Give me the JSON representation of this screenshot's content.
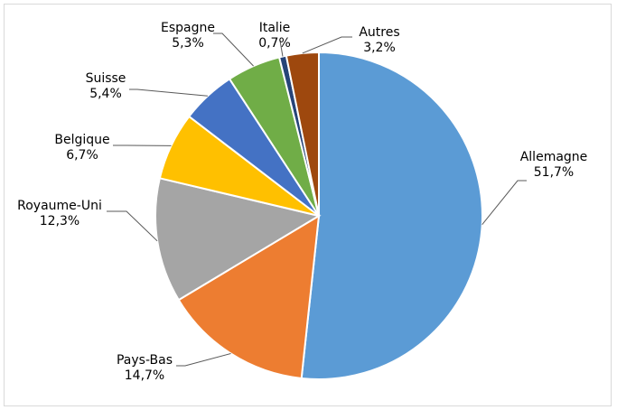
{
  "chart_data": {
    "type": "pie",
    "title": "",
    "slices": [
      {
        "label": "Allemagne",
        "value": 51.7,
        "value_text": "51,7%",
        "color": "#5b9bd5"
      },
      {
        "label": "Pays-Bas",
        "value": 14.7,
        "value_text": "14,7%",
        "color": "#ed7d31"
      },
      {
        "label": "Royaume-Uni",
        "value": 12.3,
        "value_text": "12,3%",
        "color": "#a5a5a5"
      },
      {
        "label": "Belgique",
        "value": 6.7,
        "value_text": "6,7%",
        "color": "#ffc000"
      },
      {
        "label": "Suisse",
        "value": 5.4,
        "value_text": "5,4%",
        "color": "#4472c4"
      },
      {
        "label": "Espagne",
        "value": 5.3,
        "value_text": "5,3%",
        "color": "#70ad47"
      },
      {
        "label": "Italie",
        "value": 0.7,
        "value_text": "0,7%",
        "color": "#264478"
      },
      {
        "label": "Autres",
        "value": 3.2,
        "value_text": "3,2%",
        "color": "#9e480e"
      }
    ],
    "start_angle": "12 o'clock",
    "direction": "clockwise",
    "legend": "none",
    "data_labels": "outside with leader lines"
  }
}
